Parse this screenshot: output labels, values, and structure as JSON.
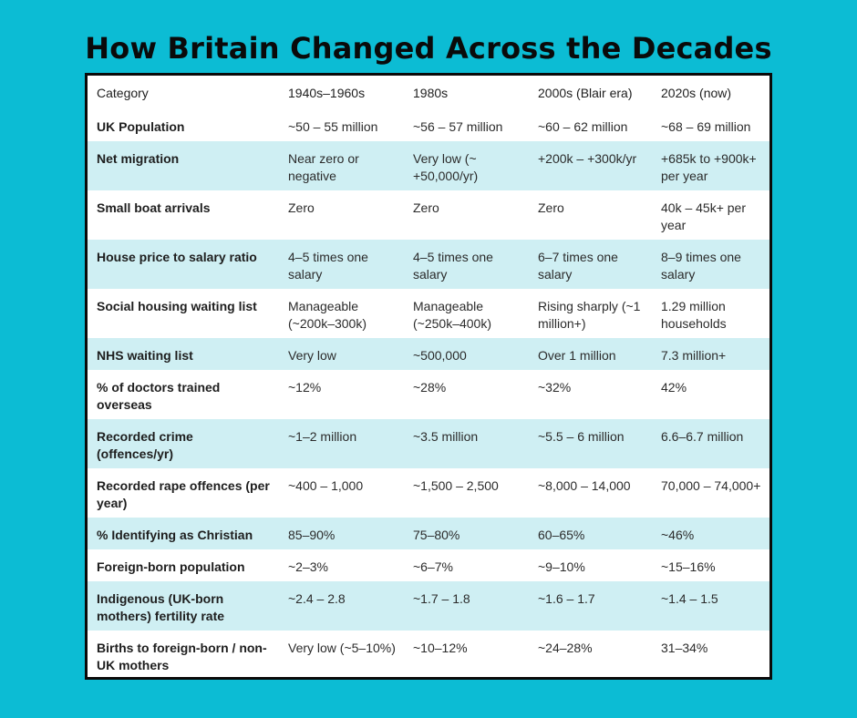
{
  "title": "How Britain Changed Across the Decades",
  "table": {
    "headers": [
      "Category",
      "1940s–1960s",
      "1980s",
      "2000s (Blair era)",
      "2020s (now)"
    ],
    "rows": [
      [
        "UK Population",
        "~50 – 55 million",
        "~56 – 57 million",
        "~60 – 62 million",
        "~68 – 69 million"
      ],
      [
        "Net migration",
        "Near zero or negative",
        "Very low (~ +50,000/yr)",
        "+200k – +300k/yr",
        "+685k to +900k+ per year"
      ],
      [
        "Small boat arrivals",
        "Zero",
        "Zero",
        "Zero",
        "40k – 45k+ per year"
      ],
      [
        "House price to salary ratio",
        "4–5 times one salary",
        "4–5 times one salary",
        "6–7 times one salary",
        "8–9 times one salary"
      ],
      [
        "Social housing waiting list",
        "Manageable (~200k–300k)",
        "Manageable (~250k–400k)",
        "Rising sharply (~1 million+)",
        "1.29 million households"
      ],
      [
        "NHS waiting list",
        "Very low",
        "~500,000",
        "Over 1 million",
        "7.3 million+"
      ],
      [
        "% of doctors trained overseas",
        "~12%",
        "~28%",
        "~32%",
        "42%"
      ],
      [
        "Recorded crime (offences/yr)",
        "~1–2 million",
        "~3.5 million",
        "~5.5 – 6 million",
        "6.6–6.7 million"
      ],
      [
        "Recorded rape offences (per year)",
        "~400 – 1,000",
        "~1,500 – 2,500",
        "~8,000 – 14,000",
        "70,000 – 74,000+"
      ],
      [
        "% Identifying as Christian",
        "85–90%",
        "75–80%",
        "60–65%",
        "~46%"
      ],
      [
        "Foreign-born population",
        "~2–3%",
        "~6–7%",
        "~9–10%",
        "~15–16%"
      ],
      [
        "Indigenous (UK-born mothers) fertility rate",
        "~2.4 – 2.8",
        "~1.7 – 1.8",
        "~1.6 – 1.7",
        "~1.4 – 1.5"
      ],
      [
        "Births to foreign-born / non-UK mothers",
        "Very low (~5–10%)",
        "~10–12%",
        "~24–28%",
        "31–34%"
      ]
    ]
  }
}
